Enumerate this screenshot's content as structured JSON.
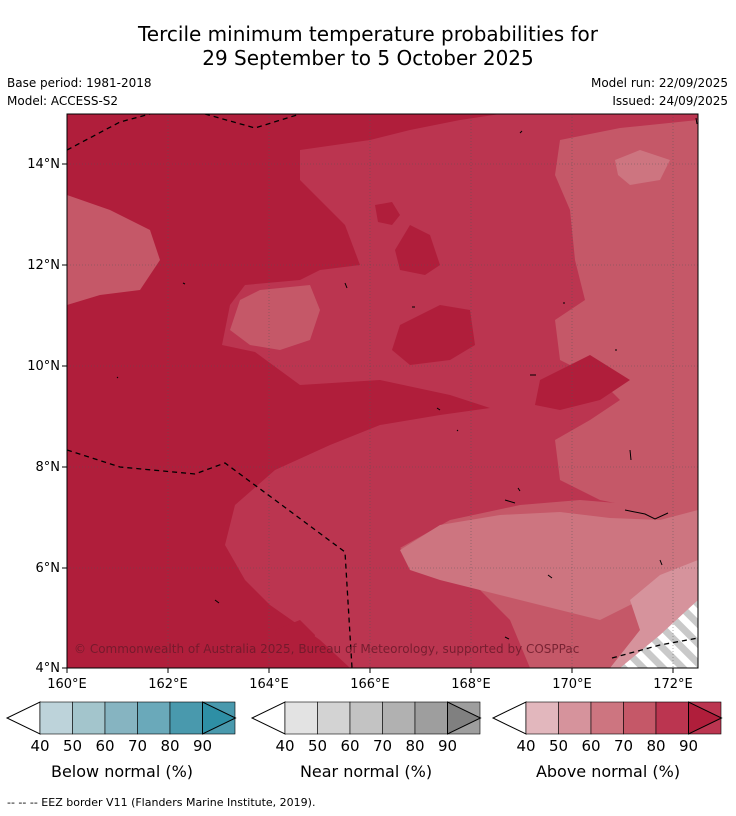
{
  "title": {
    "line1": "Tercile minimum temperature probabilities for",
    "line2": "29 September to 5 October 2025"
  },
  "meta": {
    "base_period": "Base period: 1981-2018",
    "model": "Model: ACCESS-S2",
    "model_run": "Model run: 22/09/2025",
    "issued": "Issued: 24/09/2025"
  },
  "map": {
    "lat_ticks": [
      "14°N",
      "12°N",
      "10°N",
      "8°N",
      "6°N",
      "4°N"
    ],
    "lon_ticks": [
      "160°E",
      "162°E",
      "164°E",
      "166°E",
      "168°E",
      "170°E",
      "172°E"
    ],
    "copyright": "© Commonwealth of Australia 2025, Bureau of Meteorology, supported by COSPPac"
  },
  "colorbars": [
    {
      "label": "Below normal (%)",
      "ticks": [
        "40",
        "50",
        "60",
        "70",
        "80",
        "90"
      ],
      "colors": [
        "#bdd3da",
        "#a3c5cc",
        "#86b4c1",
        "#6aa9ba",
        "#4999ad",
        "#2e8fa5"
      ]
    },
    {
      "label": "Near normal (%)",
      "ticks": [
        "40",
        "50",
        "60",
        "70",
        "80",
        "90"
      ],
      "colors": [
        "#e3e3e3",
        "#d3d3d3",
        "#c3c3c3",
        "#b1b1b1",
        "#9e9e9e",
        "#808080"
      ]
    },
    {
      "label": "Above normal (%)",
      "ticks": [
        "40",
        "50",
        "60",
        "70",
        "80",
        "90"
      ],
      "colors": [
        "#e2b7bd",
        "#d6939c",
        "#cd7580",
        "#c55868",
        "#bb3550",
        "#b01e3b"
      ]
    }
  ],
  "footnote": "--  --  -- EEZ border V11 (Flanders Marine Institute, 2019)."
}
